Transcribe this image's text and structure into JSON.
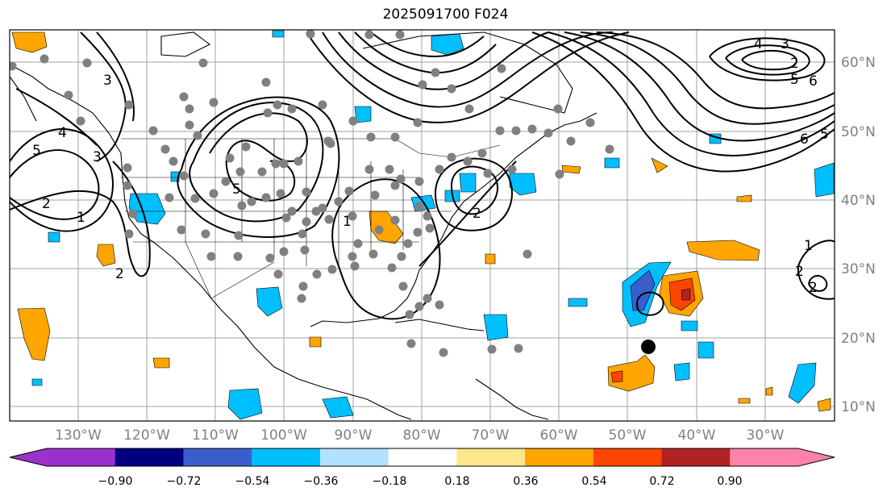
{
  "title": "2025091700 F024",
  "map": {
    "lon_labels": [
      "130°W",
      "120°W",
      "110°W",
      "100°W",
      "90°W",
      "80°W",
      "70°W",
      "60°W",
      "50°W",
      "40°W",
      "30°W"
    ],
    "lat_labels": [
      "60°N",
      "50°N",
      "40°N",
      "30°N",
      "20°N",
      "10°N"
    ],
    "contour_labels": [
      "4",
      "3",
      "2",
      "5",
      "6",
      "4",
      "5",
      "3",
      "2",
      "1",
      "5",
      "2",
      "1",
      "2",
      "6",
      "5",
      "2",
      "1",
      "2",
      "3"
    ]
  },
  "colorbar": {
    "ticks": [
      "−0.90",
      "−0.72",
      "−0.54",
      "−0.36",
      "−0.18",
      "0.18",
      "0.36",
      "0.54",
      "0.72",
      "0.90"
    ],
    "colors": {
      "lt_min": "#9933cc",
      "c1": "#9932cc",
      "c2": "#000080",
      "c3": "#3a5fcd",
      "c4": "#00bfff",
      "c5": "#b0e2ff",
      "c6": "#ffffff",
      "c7": "#ffe68a",
      "c8": "#ffa500",
      "c9": "#ff4500",
      "c10": "#b22222",
      "c11": "#ff82ab"
    }
  }
}
